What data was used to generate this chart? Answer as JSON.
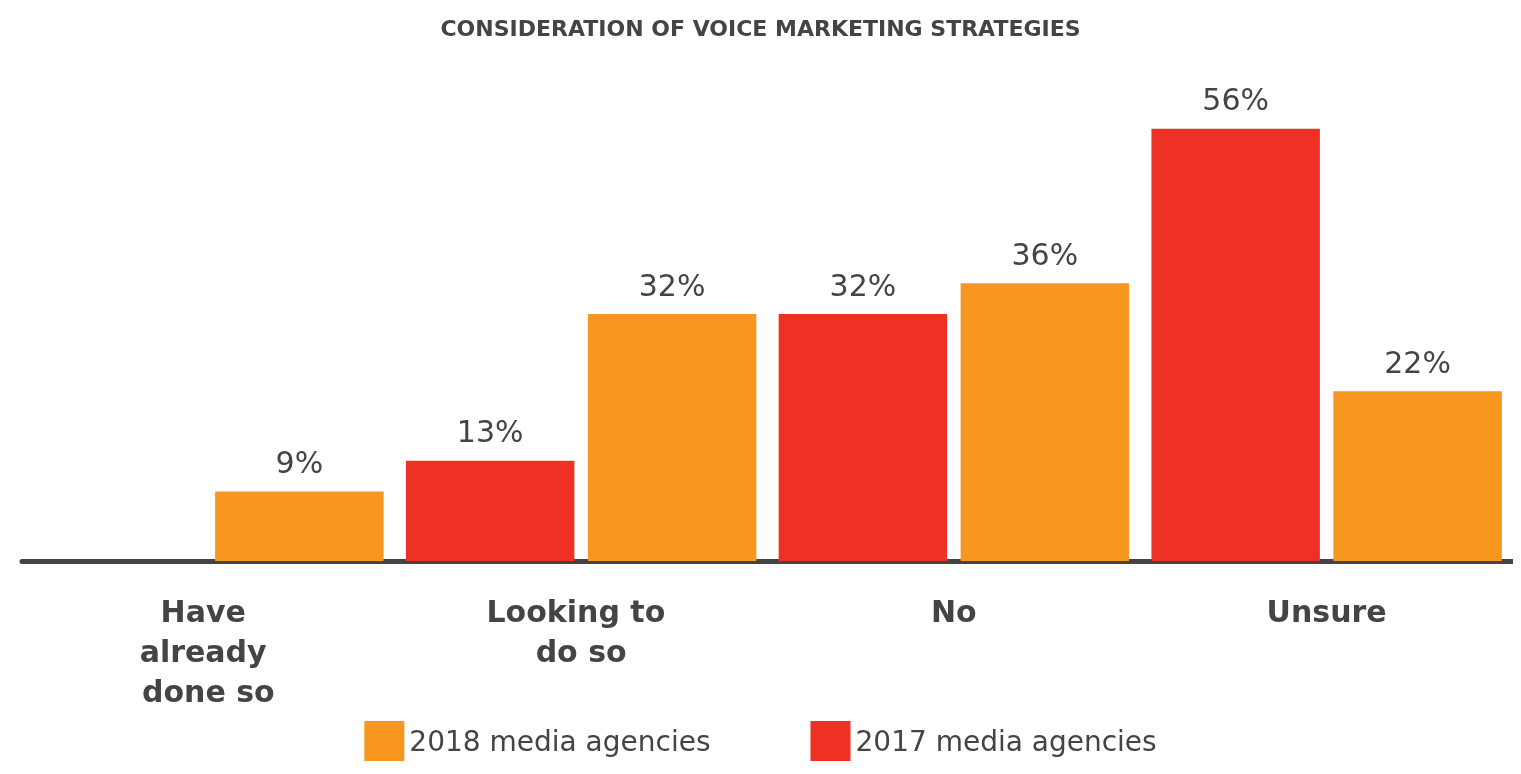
{
  "chart_data": {
    "type": "bar",
    "title": "CONSIDERATION OF VOICE MARKETING STRATEGIES",
    "categories": [
      "Have already done so",
      "Looking to do so",
      "No",
      "Unsure"
    ],
    "series": [
      {
        "name": "2017 media agencies",
        "color": "#ee3124",
        "values": [
          null,
          13,
          32,
          56
        ],
        "value_labels": [
          null,
          "13%",
          "32%",
          "56%"
        ]
      },
      {
        "name": "2018 media agencies",
        "color": "#f7971f",
        "values": [
          9,
          32,
          36,
          22
        ],
        "value_labels": [
          "9%",
          "32%",
          "36%",
          "22%"
        ]
      }
    ],
    "legend": "bottom"
  }
}
